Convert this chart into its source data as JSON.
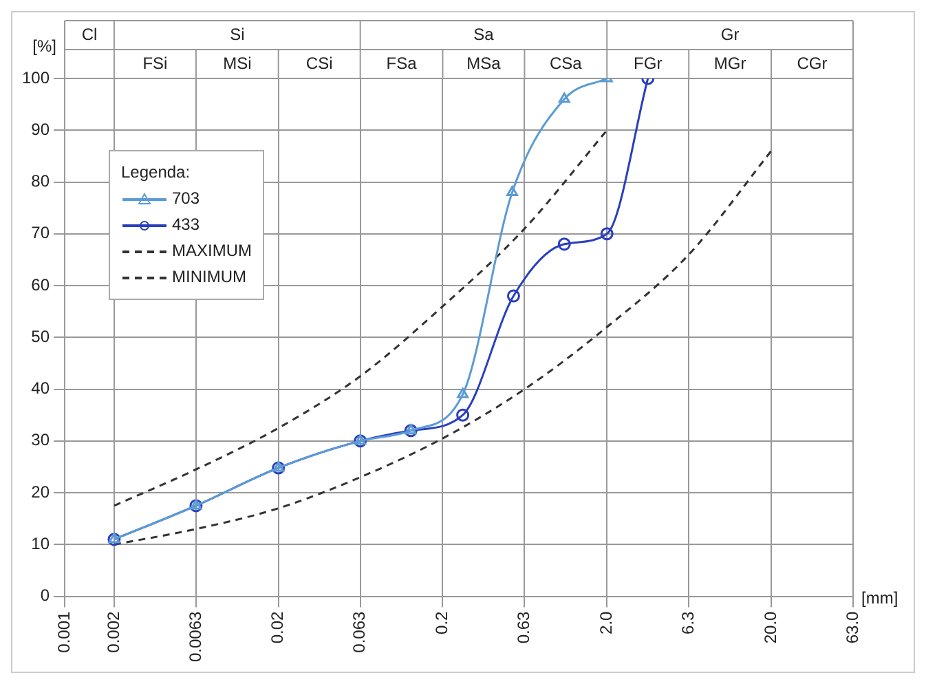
{
  "chart_data": {
    "type": "line",
    "ylabel": "[%]",
    "xlabel": "[mm]",
    "legend_title": "Legenda:",
    "legend": "top left",
    "grid": true,
    "log": "x",
    "xlim": [
      0.001,
      63
    ],
    "xticks": [
      0.001,
      0.002,
      0.0063,
      0.02,
      0.063,
      0.2,
      0.63,
      {
        "value": 2,
        "label": "2.0"
      },
      {
        "value": 6.3,
        "label": "6.3"
      },
      {
        "value": 20,
        "label": "20.0"
      },
      {
        "value": 63,
        "label": "63.0"
      }
    ],
    "annotations": [
      "Cl",
      "Si",
      "Sa",
      "Gr",
      "FSi",
      "MSi",
      "CSi",
      "FSa",
      "MSa",
      "CSa",
      "FGr",
      "MGr",
      "CGr"
    ],
    "ylim": [
      0,
      100
    ],
    "yticks": [
      0,
      10,
      20,
      30,
      40,
      50,
      60,
      70,
      80,
      90,
      100
    ],
    "series": [
      {
        "name": "703",
        "color": "#5b9bd5",
        "marker": "triangle",
        "x": [
          0.002,
          0.0063,
          0.02,
          0.063,
          0.128,
          0.265,
          0.53,
          1.1,
          2
        ],
        "values": [
          11,
          17.5,
          24.8,
          30,
          32,
          39,
          78,
          96,
          100
        ]
      },
      {
        "name": "433",
        "color": "#2a3fbf",
        "marker": "circle",
        "x": [
          0.002,
          0.0063,
          0.02,
          0.063,
          0.128,
          0.265,
          0.54,
          1.1,
          2,
          3.55
        ],
        "values": [
          11,
          17.5,
          24.8,
          30,
          32,
          35,
          58,
          68,
          70,
          100
        ]
      },
      {
        "name": "MAXIMUM",
        "color": "#333333",
        "marker": "none",
        "line_style": "dashed",
        "x": [
          0.002,
          0.0063,
          0.02,
          0.063,
          0.2,
          0.63,
          2
        ],
        "values": [
          17.5,
          24.5,
          32.5,
          42.5,
          56,
          71,
          90
        ]
      },
      {
        "name": "MINIMUM",
        "color": "#333333",
        "marker": "none",
        "line_style": "dashed",
        "x": [
          0.002,
          0.0063,
          0.02,
          0.063,
          0.2,
          0.63,
          2,
          6.3,
          20
        ],
        "values": [
          10,
          13,
          17,
          23,
          30.5,
          40,
          52,
          66,
          86
        ]
      }
    ]
  }
}
